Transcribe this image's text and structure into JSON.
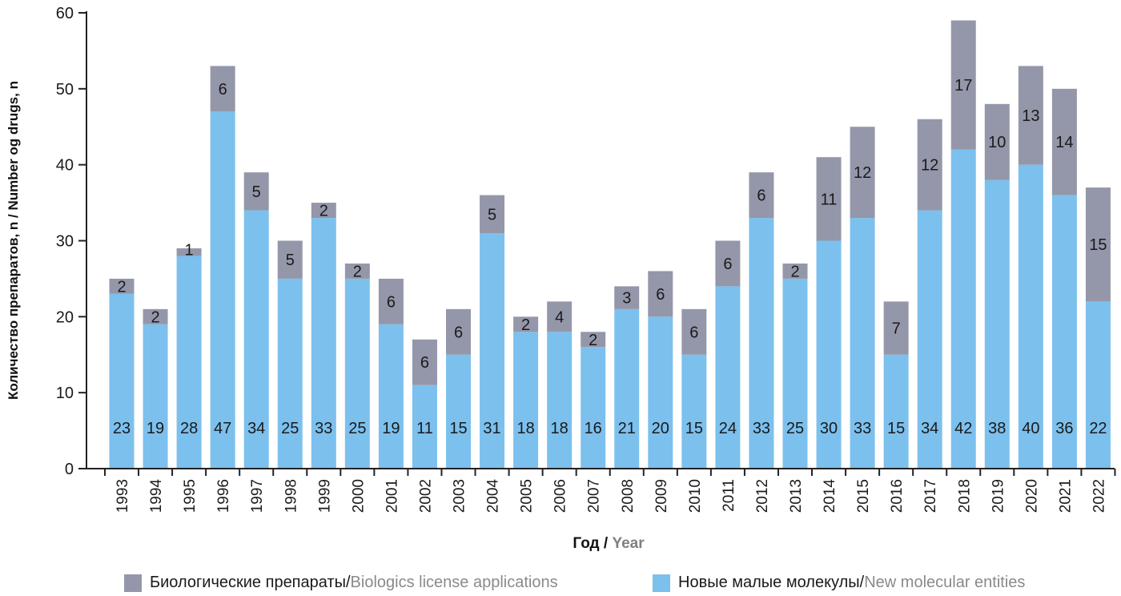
{
  "chart_data": {
    "type": "bar",
    "stacked": true,
    "categories": [
      "1993",
      "1994",
      "1995",
      "1996",
      "1997",
      "1998",
      "1999",
      "2000",
      "2001",
      "2002",
      "2003",
      "2004",
      "2005",
      "2006",
      "2007",
      "2008",
      "2009",
      "2010",
      "2011",
      "2012",
      "2013",
      "2014",
      "2015",
      "2016",
      "2017",
      "2018",
      "2019",
      "2020",
      "2021",
      "2022"
    ],
    "series": [
      {
        "name": "Новые малые молекулы / New molecular entities",
        "color": "#7cc0ee",
        "values": [
          23,
          19,
          28,
          47,
          34,
          25,
          33,
          25,
          19,
          11,
          15,
          31,
          18,
          18,
          16,
          21,
          20,
          15,
          24,
          33,
          25,
          30,
          33,
          15,
          34,
          42,
          38,
          40,
          36,
          22
        ]
      },
      {
        "name": "Биологические препараты / Biologics license applications",
        "color": "#9497a9",
        "values": [
          2,
          2,
          1,
          6,
          5,
          5,
          2,
          2,
          6,
          6,
          6,
          5,
          2,
          4,
          2,
          3,
          6,
          6,
          6,
          6,
          2,
          11,
          12,
          7,
          12,
          17,
          10,
          13,
          14,
          15
        ]
      }
    ],
    "ylim": [
      0,
      60
    ],
    "yticks": [
      0,
      10,
      20,
      30,
      40,
      50,
      60
    ],
    "ylabel": {
      "ru": "Количество препаратов, n",
      "sep": " / ",
      "en": "Number og drugs, n"
    },
    "xlabel": {
      "ru": "Год",
      "sep": " / ",
      "en": "Year"
    },
    "legend": {
      "placement": "bottom",
      "items": [
        {
          "ru": "Биологические препараты",
          "sep": " / ",
          "en": "Biologics license applications",
          "color": "#9497a9"
        },
        {
          "ru": "Новые малые молекулы",
          "sep": " / ",
          "en": "New molecular entities",
          "color": "#7cc0ee"
        }
      ]
    },
    "grid": false
  }
}
